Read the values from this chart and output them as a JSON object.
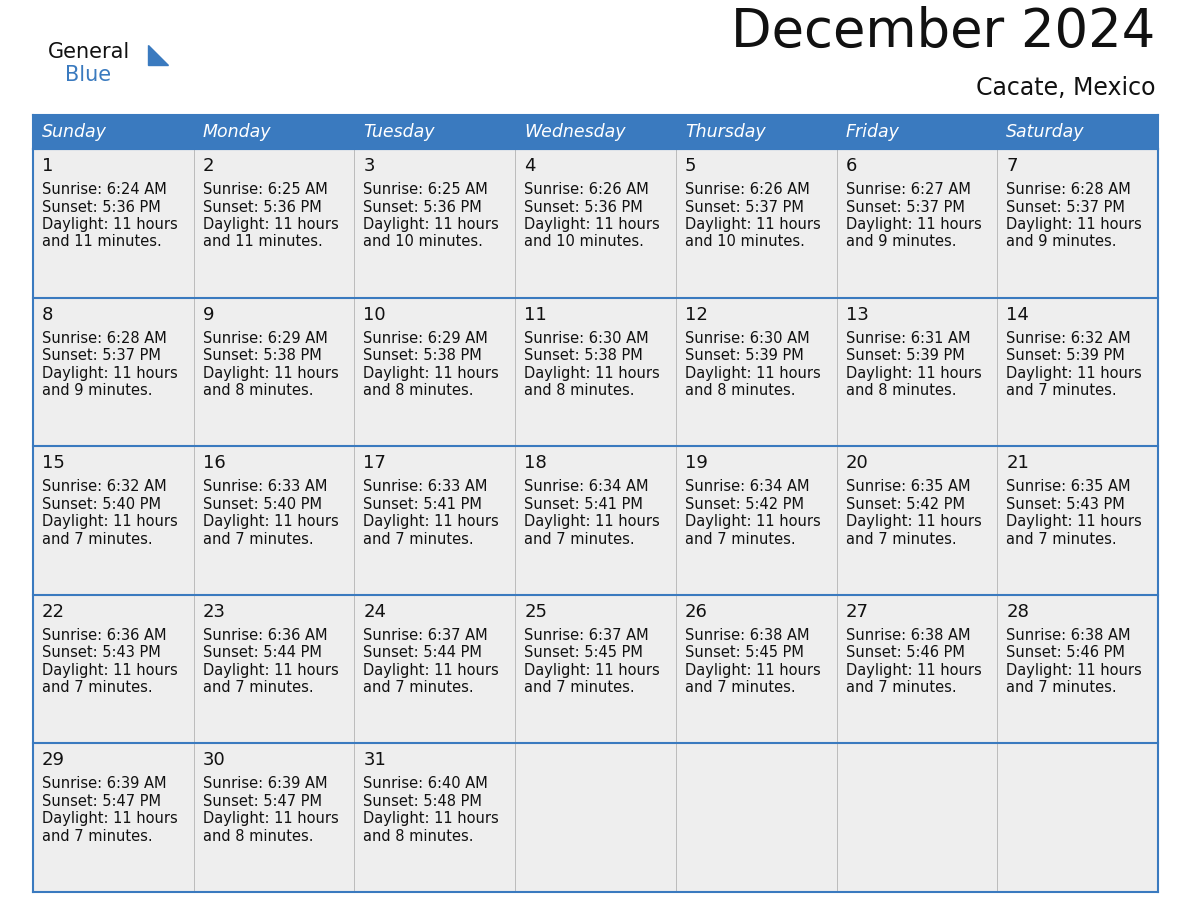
{
  "title": "December 2024",
  "subtitle": "Cacate, Mexico",
  "header_color": "#3a7abf",
  "header_text_color": "#ffffff",
  "row_bg_odd": "#eeeeee",
  "row_bg_even": "#ffffff",
  "border_color": "#3a7abf",
  "days_of_week": [
    "Sunday",
    "Monday",
    "Tuesday",
    "Wednesday",
    "Thursday",
    "Friday",
    "Saturday"
  ],
  "weeks": [
    [
      {
        "day": "1",
        "sunrise": "6:24 AM",
        "sunset": "5:36 PM",
        "dl1": "Daylight: 11 hours",
        "dl2": "and 11 minutes."
      },
      {
        "day": "2",
        "sunrise": "6:25 AM",
        "sunset": "5:36 PM",
        "dl1": "Daylight: 11 hours",
        "dl2": "and 11 minutes."
      },
      {
        "day": "3",
        "sunrise": "6:25 AM",
        "sunset": "5:36 PM",
        "dl1": "Daylight: 11 hours",
        "dl2": "and 10 minutes."
      },
      {
        "day": "4",
        "sunrise": "6:26 AM",
        "sunset": "5:36 PM",
        "dl1": "Daylight: 11 hours",
        "dl2": "and 10 minutes."
      },
      {
        "day": "5",
        "sunrise": "6:26 AM",
        "sunset": "5:37 PM",
        "dl1": "Daylight: 11 hours",
        "dl2": "and 10 minutes."
      },
      {
        "day": "6",
        "sunrise": "6:27 AM",
        "sunset": "5:37 PM",
        "dl1": "Daylight: 11 hours",
        "dl2": "and 9 minutes."
      },
      {
        "day": "7",
        "sunrise": "6:28 AM",
        "sunset": "5:37 PM",
        "dl1": "Daylight: 11 hours",
        "dl2": "and 9 minutes."
      }
    ],
    [
      {
        "day": "8",
        "sunrise": "6:28 AM",
        "sunset": "5:37 PM",
        "dl1": "Daylight: 11 hours",
        "dl2": "and 9 minutes."
      },
      {
        "day": "9",
        "sunrise": "6:29 AM",
        "sunset": "5:38 PM",
        "dl1": "Daylight: 11 hours",
        "dl2": "and 8 minutes."
      },
      {
        "day": "10",
        "sunrise": "6:29 AM",
        "sunset": "5:38 PM",
        "dl1": "Daylight: 11 hours",
        "dl2": "and 8 minutes."
      },
      {
        "day": "11",
        "sunrise": "6:30 AM",
        "sunset": "5:38 PM",
        "dl1": "Daylight: 11 hours",
        "dl2": "and 8 minutes."
      },
      {
        "day": "12",
        "sunrise": "6:30 AM",
        "sunset": "5:39 PM",
        "dl1": "Daylight: 11 hours",
        "dl2": "and 8 minutes."
      },
      {
        "day": "13",
        "sunrise": "6:31 AM",
        "sunset": "5:39 PM",
        "dl1": "Daylight: 11 hours",
        "dl2": "and 8 minutes."
      },
      {
        "day": "14",
        "sunrise": "6:32 AM",
        "sunset": "5:39 PM",
        "dl1": "Daylight: 11 hours",
        "dl2": "and 7 minutes."
      }
    ],
    [
      {
        "day": "15",
        "sunrise": "6:32 AM",
        "sunset": "5:40 PM",
        "dl1": "Daylight: 11 hours",
        "dl2": "and 7 minutes."
      },
      {
        "day": "16",
        "sunrise": "6:33 AM",
        "sunset": "5:40 PM",
        "dl1": "Daylight: 11 hours",
        "dl2": "and 7 minutes."
      },
      {
        "day": "17",
        "sunrise": "6:33 AM",
        "sunset": "5:41 PM",
        "dl1": "Daylight: 11 hours",
        "dl2": "and 7 minutes."
      },
      {
        "day": "18",
        "sunrise": "6:34 AM",
        "sunset": "5:41 PM",
        "dl1": "Daylight: 11 hours",
        "dl2": "and 7 minutes."
      },
      {
        "day": "19",
        "sunrise": "6:34 AM",
        "sunset": "5:42 PM",
        "dl1": "Daylight: 11 hours",
        "dl2": "and 7 minutes."
      },
      {
        "day": "20",
        "sunrise": "6:35 AM",
        "sunset": "5:42 PM",
        "dl1": "Daylight: 11 hours",
        "dl2": "and 7 minutes."
      },
      {
        "day": "21",
        "sunrise": "6:35 AM",
        "sunset": "5:43 PM",
        "dl1": "Daylight: 11 hours",
        "dl2": "and 7 minutes."
      }
    ],
    [
      {
        "day": "22",
        "sunrise": "6:36 AM",
        "sunset": "5:43 PM",
        "dl1": "Daylight: 11 hours",
        "dl2": "and 7 minutes."
      },
      {
        "day": "23",
        "sunrise": "6:36 AM",
        "sunset": "5:44 PM",
        "dl1": "Daylight: 11 hours",
        "dl2": "and 7 minutes."
      },
      {
        "day": "24",
        "sunrise": "6:37 AM",
        "sunset": "5:44 PM",
        "dl1": "Daylight: 11 hours",
        "dl2": "and 7 minutes."
      },
      {
        "day": "25",
        "sunrise": "6:37 AM",
        "sunset": "5:45 PM",
        "dl1": "Daylight: 11 hours",
        "dl2": "and 7 minutes."
      },
      {
        "day": "26",
        "sunrise": "6:38 AM",
        "sunset": "5:45 PM",
        "dl1": "Daylight: 11 hours",
        "dl2": "and 7 minutes."
      },
      {
        "day": "27",
        "sunrise": "6:38 AM",
        "sunset": "5:46 PM",
        "dl1": "Daylight: 11 hours",
        "dl2": "and 7 minutes."
      },
      {
        "day": "28",
        "sunrise": "6:38 AM",
        "sunset": "5:46 PM",
        "dl1": "Daylight: 11 hours",
        "dl2": "and 7 minutes."
      }
    ],
    [
      {
        "day": "29",
        "sunrise": "6:39 AM",
        "sunset": "5:47 PM",
        "dl1": "Daylight: 11 hours",
        "dl2": "and 7 minutes."
      },
      {
        "day": "30",
        "sunrise": "6:39 AM",
        "sunset": "5:47 PM",
        "dl1": "Daylight: 11 hours",
        "dl2": "and 8 minutes."
      },
      {
        "day": "31",
        "sunrise": "6:40 AM",
        "sunset": "5:48 PM",
        "dl1": "Daylight: 11 hours",
        "dl2": "and 8 minutes."
      },
      null,
      null,
      null,
      null
    ]
  ]
}
